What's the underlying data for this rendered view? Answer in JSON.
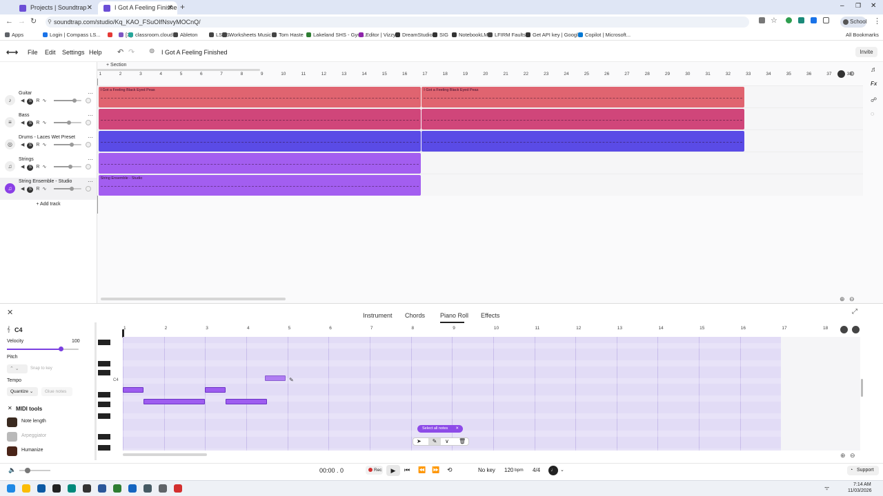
{
  "browser": {
    "tabs": [
      {
        "title": "Projects | Soundtrap",
        "active": false
      },
      {
        "title": "I Got A Feeling Finished - S",
        "active": true
      }
    ],
    "url": "soundtrap.com/studio/Kq_KAO_FSuOIfNsvyMOCnQ/",
    "profile_label": "School",
    "all_bookmarks_label": "All Bookmarks",
    "bookmarks": [
      {
        "label": "Apps",
        "color": "#5f6368"
      },
      {
        "label": "Login | Compass LS...",
        "color": "#1a73e8"
      },
      {
        "label": "",
        "color": "#e53935"
      },
      {
        "label": "[X]",
        "color": "#7e57c2"
      },
      {
        "label": "classroom.cloud",
        "color": "#26a69a"
      },
      {
        "label": "Ableton",
        "color": "#444444"
      },
      {
        "label": "LSHS",
        "color": "#444444"
      },
      {
        "label": "Worksheets Music",
        "color": "#444444"
      },
      {
        "label": "Tom Haste",
        "color": "#444444"
      },
      {
        "label": "Lakeland SHS - Gym...",
        "color": "#2e7d32"
      },
      {
        "label": "Editor | Vizzy",
        "color": "#8e24aa"
      },
      {
        "label": "DreamStudio",
        "color": "#333333"
      },
      {
        "label": "SIG",
        "color": "#333333"
      },
      {
        "label": "NotebookLM",
        "color": "#333333"
      },
      {
        "label": "LFIRM Faults",
        "color": "#444444"
      },
      {
        "label": "Get API key | Googl...",
        "color": "#333333"
      },
      {
        "label": "Copilot | Microsoft...",
        "color": "#0078d4"
      }
    ]
  },
  "appbar": {
    "menus": [
      "File",
      "Edit",
      "Settings",
      "Help"
    ],
    "project_title": "I Got A Feeling Finished",
    "invite_label": "Invite"
  },
  "timeline": {
    "section_label": "+ Section",
    "ruler_numbers": [
      "1",
      "2",
      "3",
      "4",
      "5",
      "6",
      "7",
      "8",
      "9",
      "10",
      "11",
      "12",
      "13",
      "14",
      "15",
      "16",
      "17",
      "18",
      "19",
      "20",
      "21",
      "22",
      "23",
      "24",
      "25",
      "26",
      "27",
      "28",
      "29",
      "30",
      "31",
      "32",
      "33",
      "34",
      "35",
      "36",
      "37",
      "38"
    ]
  },
  "tracks": [
    {
      "name": "Guitar",
      "icon": "guitar-icon",
      "glyph": "♪",
      "volume": 0.75,
      "color": "#e06470",
      "regions": [
        {
          "start": 1,
          "end": 17,
          "label": "I Got a Feeling Black Eyed Peas"
        },
        {
          "start": 17,
          "end": 33,
          "label": "I Got a Feeling Black Eyed Peas"
        }
      ]
    },
    {
      "name": "Bass",
      "icon": "bass-icon",
      "glyph": "≡",
      "volume": 0.55,
      "color": "#d0467a",
      "regions": [
        {
          "start": 1,
          "end": 17,
          "label": ""
        },
        {
          "start": 17,
          "end": 33,
          "label": ""
        }
      ]
    },
    {
      "name": "Drums - Laces Wet Preset",
      "icon": "drums-icon",
      "glyph": "◎",
      "volume": 0.65,
      "color": "#5a4be6",
      "regions": [
        {
          "start": 1,
          "end": 17,
          "label": ""
        },
        {
          "start": 17,
          "end": 33,
          "label": ""
        }
      ]
    },
    {
      "name": "Strings",
      "icon": "strings-icon",
      "glyph": "♫",
      "volume": 0.6,
      "color": "#a35ef0",
      "regions": [
        {
          "start": 1,
          "end": 17,
          "label": ""
        }
      ]
    },
    {
      "name": "String Ensemble - Studio",
      "icon": "string-ensemble-icon",
      "glyph": "♫",
      "volume": 0.65,
      "color": "#a35ef0",
      "selected": true,
      "regions": [
        {
          "start": 1,
          "end": 17,
          "label": "String Ensemble - Studio"
        }
      ]
    }
  ],
  "track_controls": {
    "record": "R",
    "mute": "◀",
    "solo": "S"
  },
  "add_track_label": "+ Add track",
  "editor": {
    "tabs": [
      {
        "label": "Instrument",
        "active": false
      },
      {
        "label": "Chords",
        "active": false
      },
      {
        "label": "Piano Roll",
        "active": true
      },
      {
        "label": "Effects",
        "active": false
      }
    ],
    "note_name": "C4",
    "velocity_label": "Velocity",
    "velocity_value": "100",
    "velocity_level": 0.75,
    "pitch_label": "Pitch",
    "snap_to_key_label": "Snap to key",
    "tempo_label": "Tempo",
    "quantize_label": "Quantize",
    "glue_notes_label": "Glue notes",
    "midi_tools_label": "MIDI tools",
    "midi_tools": [
      {
        "label": "Note length",
        "enabled": true,
        "color": "#3a2a20"
      },
      {
        "label": "Arpeggiator",
        "enabled": false,
        "color": "#b9b9b9"
      },
      {
        "label": "Humanize",
        "enabled": true,
        "color": "#4a2418"
      }
    ],
    "roll_ruler": [
      "1",
      "2",
      "3",
      "4",
      "5",
      "6",
      "7",
      "8",
      "9",
      "10",
      "11",
      "12",
      "13",
      "14",
      "15",
      "16",
      "17",
      "18"
    ],
    "c4_label": "C4",
    "select_all_label": "Select all notes",
    "notes": [
      {
        "bar": 1.0,
        "length": 0.5,
        "row": 5
      },
      {
        "bar": 1.5,
        "length": 1.5,
        "row": 7
      },
      {
        "bar": 3.0,
        "length": 0.5,
        "row": 5
      },
      {
        "bar": 3.5,
        "length": 1.0,
        "row": 7
      },
      {
        "bar": 4.45,
        "length": 0.5,
        "row": 3
      }
    ]
  },
  "transport": {
    "time": "00:00 . 0",
    "rec_label": "Rec",
    "key_label": "No key",
    "bpm_value": "120",
    "bpm_unit": "bpm",
    "signature": "4/4",
    "support_label": "Support"
  },
  "taskbar": {
    "time": "7:14 AM",
    "date": "11/03/2026",
    "icons": [
      {
        "name": "windows-icon",
        "color": "#1e88e5"
      },
      {
        "name": "chrome-icon",
        "color": "#fbbc05"
      },
      {
        "name": "edge-icon",
        "color": "#0c59a4"
      },
      {
        "name": "terminal-icon",
        "color": "#222222"
      },
      {
        "name": "onenote-icon",
        "color": "#00897b"
      },
      {
        "name": "notes-icon",
        "color": "#333333"
      },
      {
        "name": "word-icon",
        "color": "#2b579a"
      },
      {
        "name": "app-green-icon",
        "color": "#2e7d32"
      },
      {
        "name": "app-blue-icon",
        "color": "#1565c0"
      },
      {
        "name": "app-gray-icon",
        "color": "#455a64"
      },
      {
        "name": "settings-icon",
        "color": "#5f6368"
      },
      {
        "name": "app-record-icon",
        "color": "#d32f2f"
      }
    ]
  }
}
